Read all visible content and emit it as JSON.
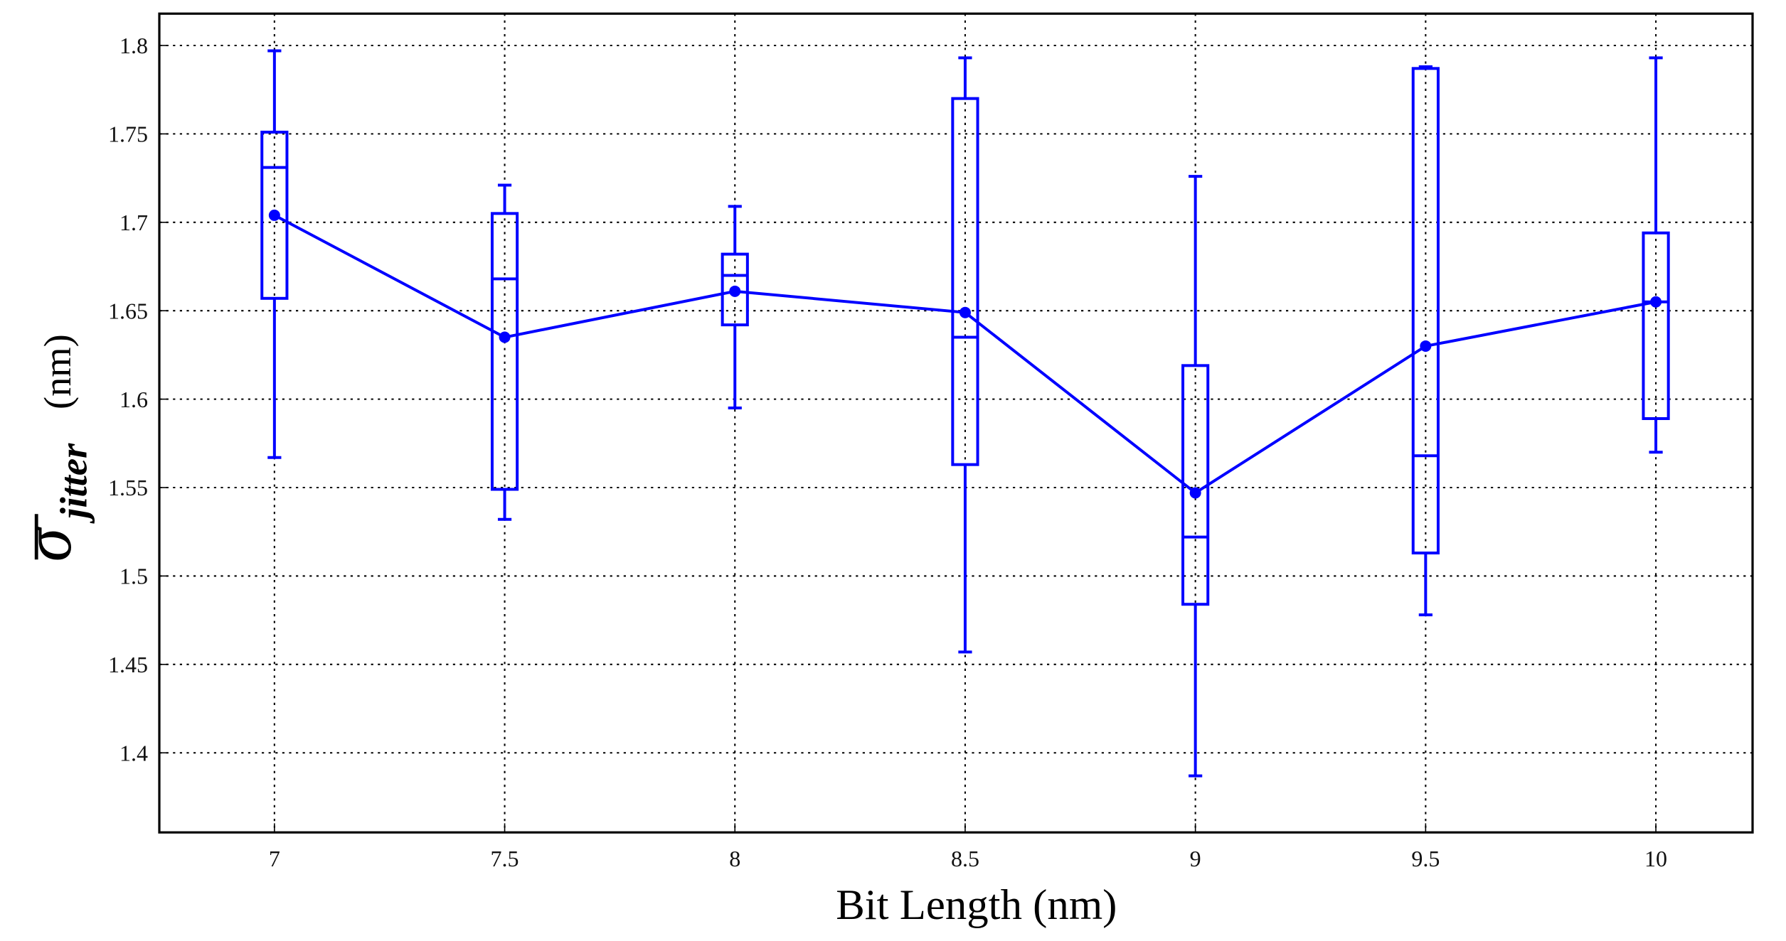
{
  "chart_data": {
    "type": "box",
    "x_label": "Bit Length (nm)",
    "y_label": {
      "symbol": "σ",
      "subscript": "jitter",
      "unit": "(nm)"
    },
    "x": [
      7,
      7.5,
      8,
      8.5,
      9,
      9.5,
      10
    ],
    "whisker_low": [
      1.567,
      1.532,
      1.595,
      1.457,
      1.387,
      1.478,
      1.57
    ],
    "q1": [
      1.657,
      1.549,
      1.642,
      1.563,
      1.484,
      1.513,
      1.589
    ],
    "median": [
      1.731,
      1.668,
      1.67,
      1.635,
      1.522,
      1.568,
      1.655
    ],
    "q3": [
      1.751,
      1.705,
      1.682,
      1.77,
      1.619,
      1.787,
      1.694
    ],
    "whisker_high": [
      1.797,
      1.721,
      1.709,
      1.793,
      1.726,
      1.788,
      1.793
    ],
    "mean": [
      1.704,
      1.635,
      1.661,
      1.649,
      1.547,
      1.63,
      1.655
    ],
    "color": "#0000ff",
    "xlim": [
      6.75,
      10.21
    ],
    "ylim": [
      1.355,
      1.818
    ],
    "xticks": [
      7,
      7.5,
      8,
      8.5,
      9,
      9.5,
      10
    ],
    "yticks": [
      1.4,
      1.45,
      1.5,
      1.55,
      1.6,
      1.65,
      1.7,
      1.75,
      1.8
    ],
    "grid": true
  }
}
